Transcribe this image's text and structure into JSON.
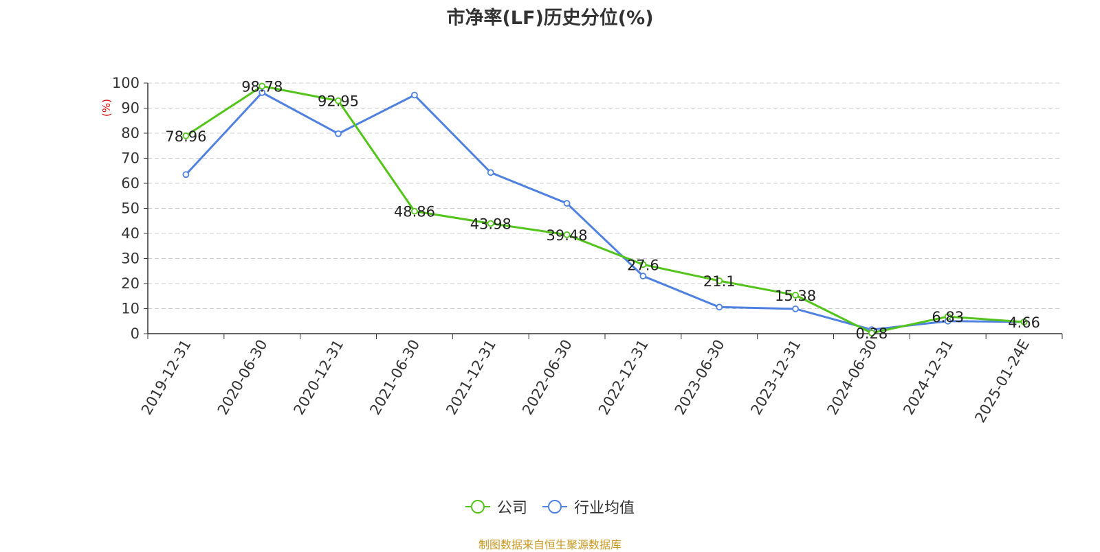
{
  "title": "市净率(LF)历史分位(%)",
  "source": "制图数据来自恒生聚源数据库",
  "colors": {
    "company": "#52c41a",
    "industry": "#4f81e0",
    "ylabel": "#e00000"
  },
  "legend": [
    {
      "label": "公司",
      "icon": "circle-line-icon"
    },
    {
      "label": "行业均值",
      "icon": "circle-line-icon"
    }
  ],
  "chart_data": {
    "type": "line",
    "title": "市净率(LF)历史分位(%)",
    "ylabel": "(%)",
    "xlabel": "",
    "ylim": [
      0,
      100
    ],
    "yticks": [
      0,
      10,
      20,
      30,
      40,
      50,
      60,
      70,
      80,
      90,
      100
    ],
    "grid": true,
    "legend_position": "bottom",
    "categories": [
      "2019-12-31",
      "2020-06-30",
      "2020-12-31",
      "2021-06-30",
      "2021-12-31",
      "2022-06-30",
      "2022-12-31",
      "2023-06-30",
      "2023-12-31",
      "2024-06-30",
      "2024-12-31",
      "2025-01-24E"
    ],
    "series": [
      {
        "name": "公司",
        "values": [
          78.96,
          98.78,
          92.95,
          48.86,
          43.98,
          39.48,
          27.6,
          21.1,
          15.38,
          0.28,
          6.83,
          4.66
        ],
        "labels": [
          "78.96",
          "98.78",
          "92.95",
          "48.86",
          "43.98",
          "39.48",
          "27.6",
          "21.1",
          "15.38",
          "0.28",
          "6.83",
          "4.66"
        ]
      },
      {
        "name": "行业均值",
        "values": [
          63.5,
          96.2,
          79.8,
          95.2,
          64.3,
          52.0,
          23.0,
          10.6,
          9.9,
          1.6,
          5.0,
          4.7
        ]
      }
    ]
  }
}
